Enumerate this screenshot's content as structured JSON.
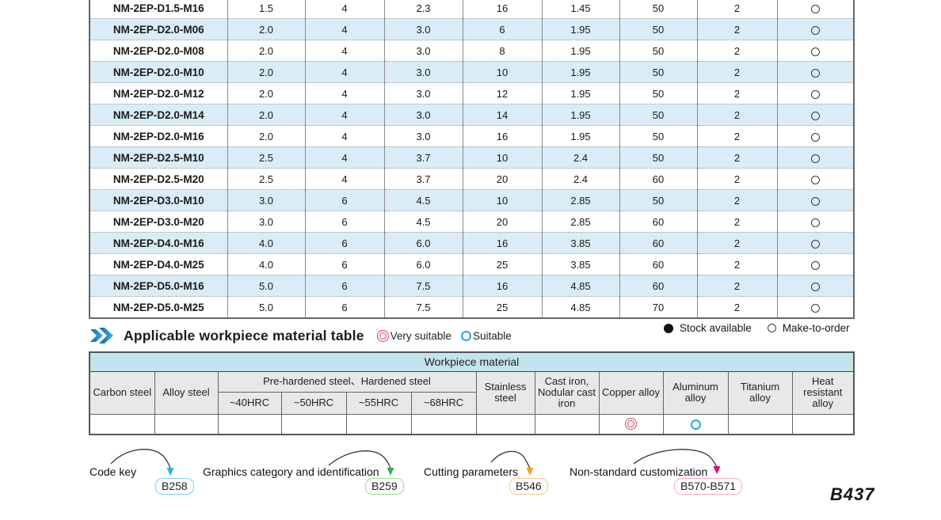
{
  "spec_table": {
    "rows": [
      {
        "model": "NM-2EP-D1.5-M16",
        "values": [
          "1.5",
          "4",
          "2.3",
          "16",
          "1.45",
          "50",
          "2"
        ],
        "stock": "make-to-order"
      },
      {
        "model": "NM-2EP-D2.0-M06",
        "values": [
          "2.0",
          "4",
          "3.0",
          "6",
          "1.95",
          "50",
          "2"
        ],
        "stock": "make-to-order"
      },
      {
        "model": "NM-2EP-D2.0-M08",
        "values": [
          "2.0",
          "4",
          "3.0",
          "8",
          "1.95",
          "50",
          "2"
        ],
        "stock": "make-to-order"
      },
      {
        "model": "NM-2EP-D2.0-M10",
        "values": [
          "2.0",
          "4",
          "3.0",
          "10",
          "1.95",
          "50",
          "2"
        ],
        "stock": "make-to-order"
      },
      {
        "model": "NM-2EP-D2.0-M12",
        "values": [
          "2.0",
          "4",
          "3.0",
          "12",
          "1.95",
          "50",
          "2"
        ],
        "stock": "make-to-order"
      },
      {
        "model": "NM-2EP-D2.0-M14",
        "values": [
          "2.0",
          "4",
          "3.0",
          "14",
          "1.95",
          "50",
          "2"
        ],
        "stock": "make-to-order"
      },
      {
        "model": "NM-2EP-D2.0-M16",
        "values": [
          "2.0",
          "4",
          "3.0",
          "16",
          "1.95",
          "50",
          "2"
        ],
        "stock": "make-to-order"
      },
      {
        "model": "NM-2EP-D2.5-M10",
        "values": [
          "2.5",
          "4",
          "3.7",
          "10",
          "2.4",
          "50",
          "2"
        ],
        "stock": "make-to-order"
      },
      {
        "model": "NM-2EP-D2.5-M20",
        "values": [
          "2.5",
          "4",
          "3.7",
          "20",
          "2.4",
          "60",
          "2"
        ],
        "stock": "make-to-order"
      },
      {
        "model": "NM-2EP-D3.0-M10",
        "values": [
          "3.0",
          "6",
          "4.5",
          "10",
          "2.85",
          "50",
          "2"
        ],
        "stock": "make-to-order"
      },
      {
        "model": "NM-2EP-D3.0-M20",
        "values": [
          "3.0",
          "6",
          "4.5",
          "20",
          "2.85",
          "60",
          "2"
        ],
        "stock": "make-to-order"
      },
      {
        "model": "NM-2EP-D4.0-M16",
        "values": [
          "4.0",
          "6",
          "6.0",
          "16",
          "3.85",
          "60",
          "2"
        ],
        "stock": "make-to-order"
      },
      {
        "model": "NM-2EP-D4.0-M25",
        "values": [
          "4.0",
          "6",
          "6.0",
          "25",
          "3.85",
          "60",
          "2"
        ],
        "stock": "make-to-order"
      },
      {
        "model": "NM-2EP-D5.0-M16",
        "values": [
          "5.0",
          "6",
          "7.5",
          "16",
          "4.85",
          "60",
          "2"
        ],
        "stock": "make-to-order"
      },
      {
        "model": "NM-2EP-D5.0-M25",
        "values": [
          "5.0",
          "6",
          "7.5",
          "25",
          "4.85",
          "70",
          "2"
        ],
        "stock": "make-to-order"
      }
    ]
  },
  "stock_legend": {
    "available_label": "Stock available",
    "mto_label": "Make-to-order"
  },
  "section": {
    "title": "Applicable workpiece material table",
    "very_suitable_label": "Very suitable",
    "suitable_label": "Suitable"
  },
  "material_table": {
    "banner": "Workpiece material",
    "col_carbon": "Carbon steel",
    "col_alloy": "Alloy steel",
    "group_hardened": "Pre-hardened steel、Hardened steel",
    "sub_hrc": [
      "~40HRC",
      "~50HRC",
      "~55HRC",
      "~68HRC"
    ],
    "col_stainless": "Stainless steel",
    "col_cast_iron": "Cast iron, Nodular cast iron",
    "col_copper": "Copper alloy",
    "col_aluminum": "Aluminum alloy",
    "col_titanium": "Titanium alloy",
    "col_heat": "Heat resistant alloy",
    "ratings": {
      "carbon_steel": "",
      "alloy_steel": "",
      "hrc40": "",
      "hrc50": "",
      "hrc55": "",
      "hrc68": "",
      "stainless_steel": "",
      "cast_iron": "",
      "copper_alloy": "very-suitable",
      "aluminum_alloy": "suitable",
      "titanium_alloy": "",
      "heat_resistant_alloy": ""
    }
  },
  "footer": {
    "links": [
      {
        "label": "Code key",
        "badge": "B258",
        "border_color": "#7ad2ef",
        "arrow_color": "#2bb1e0"
      },
      {
        "label": "Graphics category and identification",
        "badge": "B259",
        "border_color": "#9ad69a",
        "arrow_color": "#3fae46"
      },
      {
        "label": "Cutting parameters",
        "badge": "B546",
        "border_color": "#f6c98e",
        "arrow_color": "#f59a23"
      },
      {
        "label": "Non-standard customization",
        "badge": "B570-B571",
        "border_color": "#f5a9cf",
        "arrow_color": "#e6007e"
      }
    ],
    "page_number": "B437"
  },
  "colors": {
    "row_alt": "#d9ecf7",
    "banner_bg": "#c2e4ee",
    "header_bg": "#e8e8e8",
    "very_suitable": "#e8404f",
    "suitable": "#29a8dc",
    "heading_icon_dark": "#0b63a8",
    "heading_icon_light": "#3fb0e8"
  }
}
